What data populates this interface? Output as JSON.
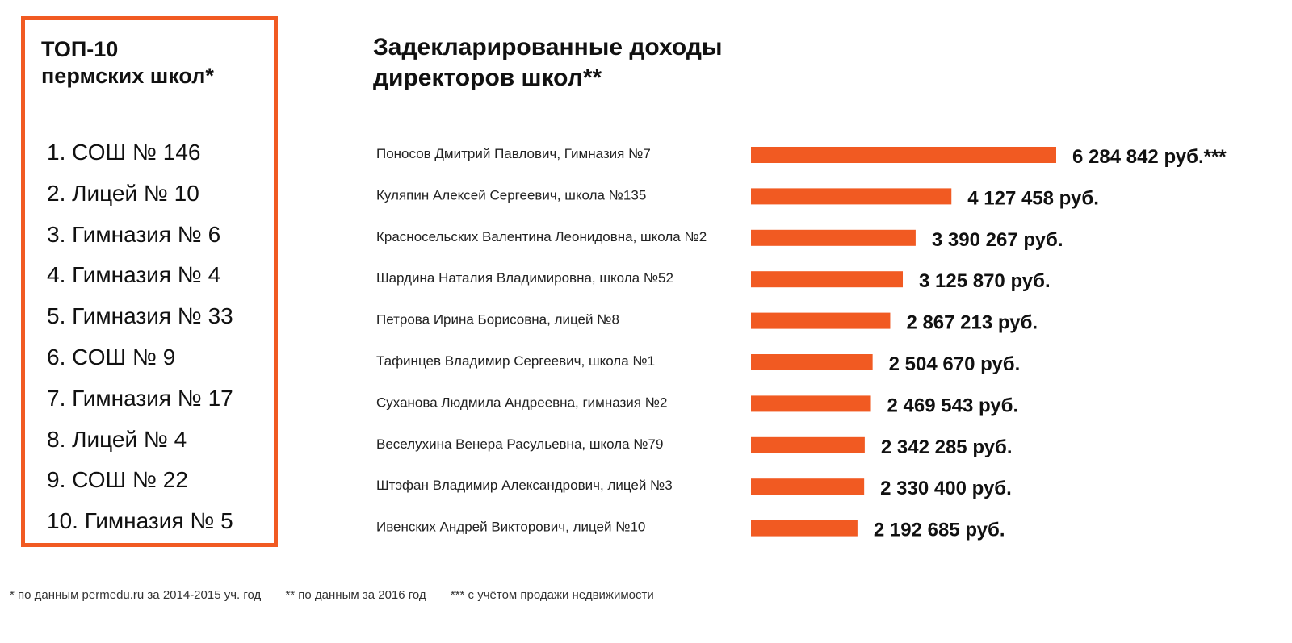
{
  "ranking": {
    "title_line1": "ТОП-10",
    "title_line2": "пермских школ*",
    "items": [
      "1. СОШ № 146",
      "2. Лицей № 10",
      "3. Гимназия № 6",
      "4. Гимназия № 4",
      "5. Гимназия № 33",
      "6. СОШ № 9",
      "7. Гимназия № 17",
      "8. Лицей № 4",
      "9. СОШ № 22",
      "10. Гимназия № 5"
    ]
  },
  "chart_data": {
    "type": "bar",
    "orientation": "horizontal",
    "title_line1": "Задекларированные доходы",
    "title_line2": "директоров школ**",
    "title": "Задекларированные доходы директоров школ**",
    "xlabel": "",
    "ylabel": "",
    "grid": false,
    "legend": "none",
    "bar_color": "#f15a22",
    "categories": [
      "Поносов Дмитрий Павлович, Гимназия №7",
      "Куляпин Алексей Сергеевич, школа №135",
      "Красносельских Валентина Леонидовна, школа №2",
      "Шардина Наталия Владимировна, школа №52",
      "Петрова Ирина Борисовна, лицей №8",
      "Тафинцев Владимир Сергеевич, школа №1",
      "Суханова Людмила Андреевна, гимназия №2",
      "Веселухина Венера Расульевна, школа №79",
      "Штэфан Владимир Александрович, лицей №3",
      "Ивенских Андрей Викторович, лицей №10"
    ],
    "values": [
      6284842,
      4127458,
      3390267,
      3125870,
      2867213,
      2504670,
      2469543,
      2342285,
      2330400,
      2192685
    ],
    "value_labels": [
      "6 284 842 руб.***",
      "4 127 458 руб.",
      "3 390 267 руб.",
      "3 125 870 руб.",
      "2 867 213 руб.",
      "2 504 670 руб.",
      "2 469 543 руб.",
      "2 342 285 руб.",
      "2 330 400 руб.",
      "2 192 685 руб."
    ]
  },
  "footnotes": [
    "* по данным permedu.ru за 2014-2015 уч. год",
    "** по данным за 2016 год",
    "*** с учётом продажи недвижимости"
  ]
}
